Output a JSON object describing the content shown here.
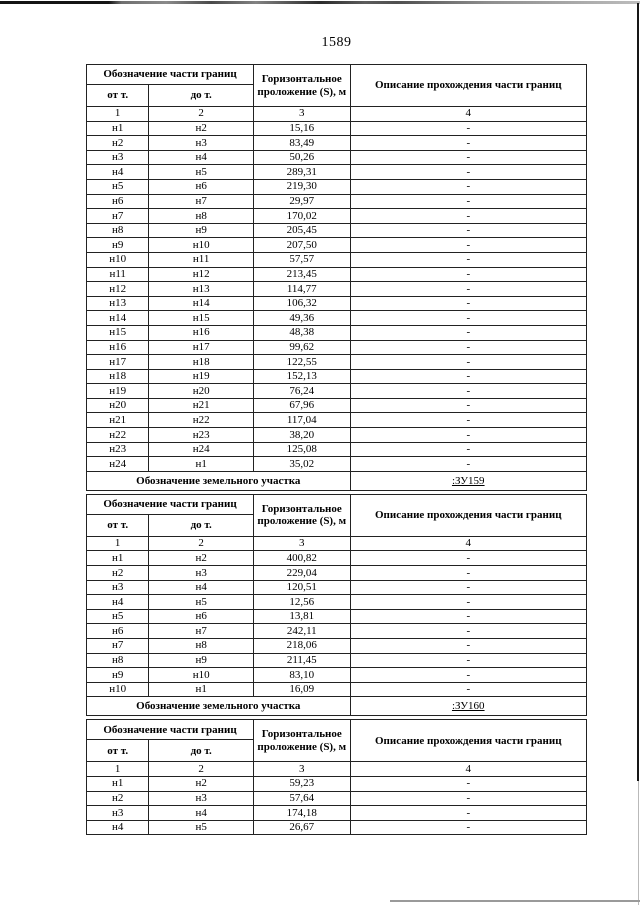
{
  "page": {
    "number": "1589"
  },
  "table_header": {
    "col_boundary": "Обозначение части границ",
    "col_from": "от т.",
    "col_to": "до т.",
    "col_distance": "Горизонтальное проложение (S), м",
    "col_description": "Описание прохождения части границ",
    "col_numbers": [
      "1",
      "2",
      "3",
      "4"
    ]
  },
  "parcel_label": "Обозначение земельного участка",
  "sections": [
    {
      "parcel_value": ":ЗУ159",
      "rows": [
        [
          "н1",
          "н2",
          "15,16",
          "-"
        ],
        [
          "н2",
          "н3",
          "83,49",
          "-"
        ],
        [
          "н3",
          "н4",
          "50,26",
          "-"
        ],
        [
          "н4",
          "н5",
          "289,31",
          "-"
        ],
        [
          "н5",
          "н6",
          "219,30",
          "-"
        ],
        [
          "н6",
          "н7",
          "29,97",
          "-"
        ],
        [
          "н7",
          "н8",
          "170,02",
          "-"
        ],
        [
          "н8",
          "н9",
          "205,45",
          "-"
        ],
        [
          "н9",
          "н10",
          "207,50",
          "-"
        ],
        [
          "н10",
          "н11",
          "57,57",
          "-"
        ],
        [
          "н11",
          "н12",
          "213,45",
          "-"
        ],
        [
          "н12",
          "н13",
          "114,77",
          "-"
        ],
        [
          "н13",
          "н14",
          "106,32",
          "-"
        ],
        [
          "н14",
          "н15",
          "49,36",
          "-"
        ],
        [
          "н15",
          "н16",
          "48,38",
          "-"
        ],
        [
          "н16",
          "н17",
          "99,62",
          "-"
        ],
        [
          "н17",
          "н18",
          "122,55",
          "-"
        ],
        [
          "н18",
          "н19",
          "152,13",
          "-"
        ],
        [
          "н19",
          "н20",
          "76,24",
          "-"
        ],
        [
          "н20",
          "н21",
          "67,96",
          "-"
        ],
        [
          "н21",
          "н22",
          "117,04",
          "-"
        ],
        [
          "н22",
          "н23",
          "38,20",
          "-"
        ],
        [
          "н23",
          "н24",
          "125,08",
          "-"
        ],
        [
          "н24",
          "н1",
          "35,02",
          "-"
        ]
      ]
    },
    {
      "parcel_value": ":ЗУ160",
      "rows": [
        [
          "н1",
          "н2",
          "400,82",
          "-"
        ],
        [
          "н2",
          "н3",
          "229,04",
          "-"
        ],
        [
          "н3",
          "н4",
          "120,51",
          "-"
        ],
        [
          "н4",
          "н5",
          "12,56",
          "-"
        ],
        [
          "н5",
          "н6",
          "13,81",
          "-"
        ],
        [
          "н6",
          "н7",
          "242,11",
          "-"
        ],
        [
          "н7",
          "н8",
          "218,06",
          "-"
        ],
        [
          "н8",
          "н9",
          "211,45",
          "-"
        ],
        [
          "н9",
          "н10",
          "83,10",
          "-"
        ],
        [
          "н10",
          "н1",
          "16,09",
          "-"
        ]
      ]
    },
    {
      "rows": [
        [
          "н1",
          "н2",
          "59,23",
          "-"
        ],
        [
          "н2",
          "н3",
          "57,64",
          "-"
        ],
        [
          "н3",
          "н4",
          "174,18",
          "-"
        ],
        [
          "н4",
          "н5",
          "26,67",
          "-"
        ]
      ]
    }
  ]
}
